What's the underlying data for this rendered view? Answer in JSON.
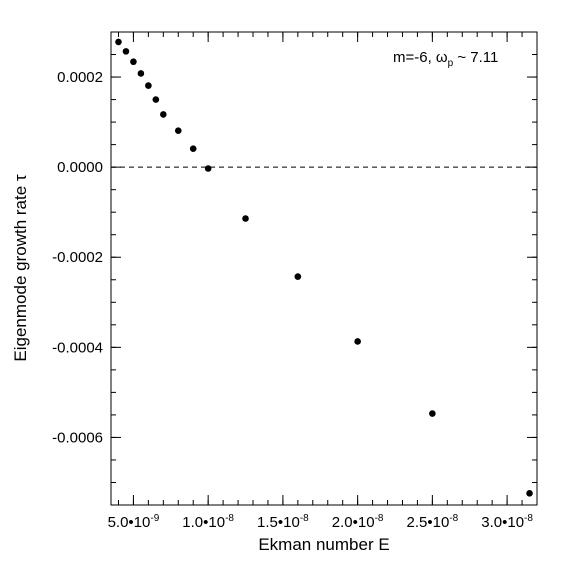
{
  "chart_data": {
    "type": "scatter",
    "xlabel": "Ekman number E",
    "ylabel": "Eigenmode growth rate τ",
    "annotation": {
      "prefix": "m=-6, ω",
      "subscript": "p",
      "suffix": " ~ 7.11"
    },
    "xlim": [
      3.5e-09,
      3.2e-08
    ],
    "ylim": [
      -0.00075,
      0.0003
    ],
    "grid": false,
    "reference_line": {
      "y": 0.0,
      "style": "dashed"
    },
    "x_ticks": [
      {
        "value": 5e-09,
        "mantissa": "5.0",
        "exponent": "-9"
      },
      {
        "value": 1e-08,
        "mantissa": "1.0",
        "exponent": "-8"
      },
      {
        "value": 1.5e-08,
        "mantissa": "1.5",
        "exponent": "-8"
      },
      {
        "value": 2e-08,
        "mantissa": "2.0",
        "exponent": "-8"
      },
      {
        "value": 2.5e-08,
        "mantissa": "2.5",
        "exponent": "-8"
      },
      {
        "value": 3e-08,
        "mantissa": "3.0",
        "exponent": "-8"
      }
    ],
    "x_minor_step": 1e-09,
    "y_ticks": [
      {
        "value": 0.0002,
        "label": "0.0002"
      },
      {
        "value": 0.0,
        "label": "0.0000"
      },
      {
        "value": -0.0002,
        "label": "-0.0002"
      },
      {
        "value": -0.0004,
        "label": "-0.0004"
      },
      {
        "value": -0.0006,
        "label": "-0.0006"
      }
    ],
    "y_minor_step": 5e-05,
    "marker_color": "#000000",
    "series": [
      {
        "x": [
          4e-09,
          4.5e-09,
          5e-09,
          5.5e-09,
          6e-09,
          6.5e-09,
          7e-09,
          8e-09,
          9e-09,
          1e-08,
          1.25e-08,
          1.6e-08,
          2e-08,
          2.5e-08,
          3.15e-08
        ],
        "y": [
          0.000278,
          0.000257,
          0.000234,
          0.000208,
          0.000181,
          0.00015,
          0.000117,
          8.1e-05,
          4.1e-05,
          -3e-06,
          -0.000114,
          -0.000243,
          -0.000387,
          -0.000547,
          -0.000724
        ]
      }
    ]
  }
}
